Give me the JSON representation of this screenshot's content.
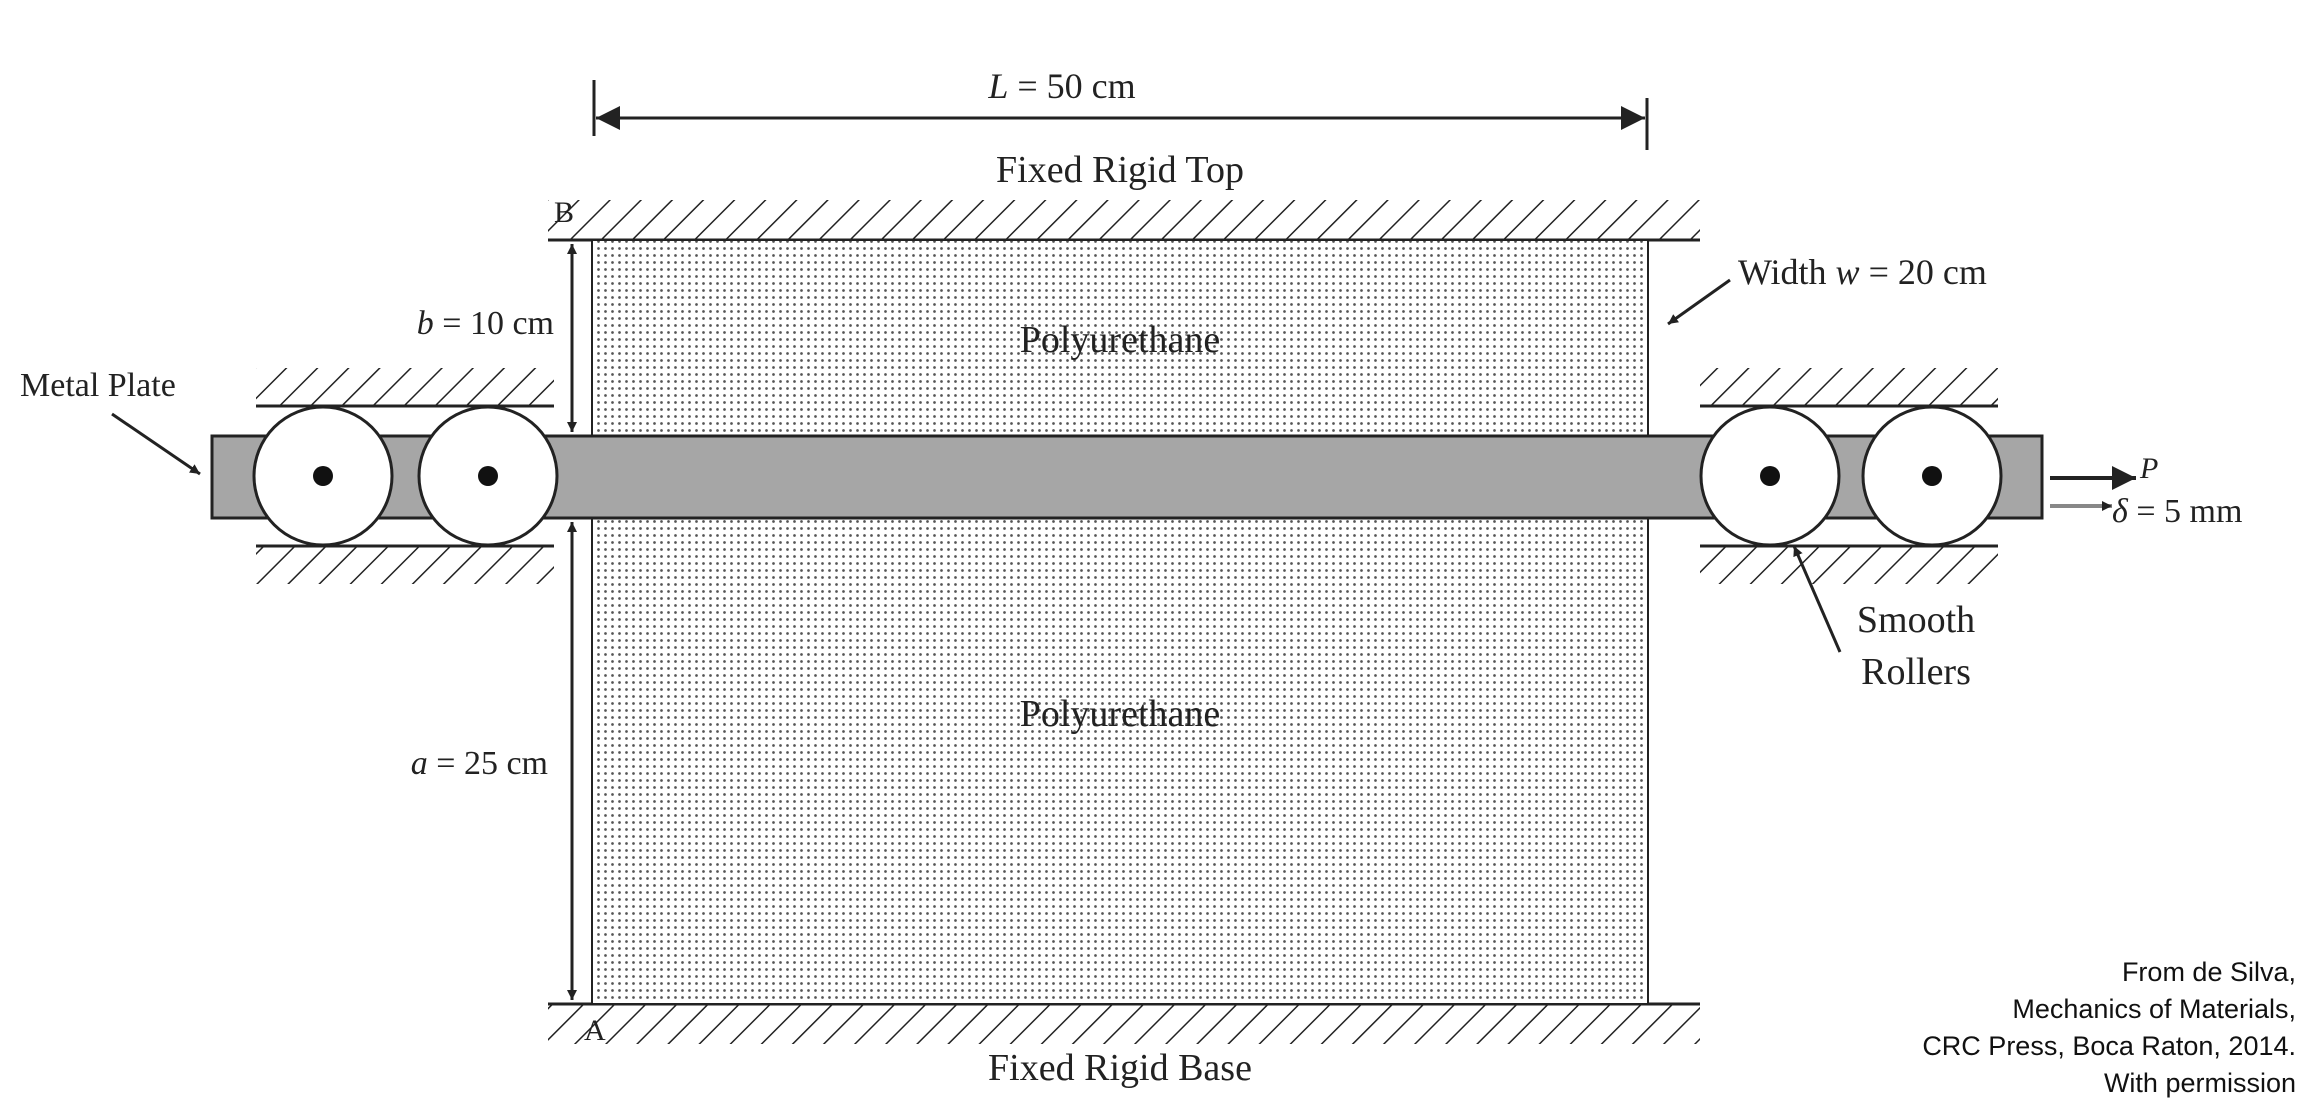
{
  "labels": {
    "top": "Fixed Rigid Top",
    "base": "Fixed Rigid Base",
    "polyurethane_upper": "Polyurethane",
    "polyurethane_lower": "Polyurethane",
    "metal_plate": "Metal Plate",
    "rollers_line1": "Smooth",
    "rollers_line2": "Rollers",
    "point_b": "B",
    "point_a": "A"
  },
  "dimensions": {
    "length": {
      "symbol": "L",
      "value": "50 cm"
    },
    "upper_thickness": {
      "symbol": "b",
      "value": "10 cm"
    },
    "lower_thickness": {
      "symbol": "a",
      "value": "25 cm"
    },
    "width": {
      "prefix": "Width",
      "symbol": "w",
      "value": "20 cm"
    }
  },
  "load": {
    "force_symbol": "P",
    "displacement_symbol": "δ",
    "displacement_value": "5 mm"
  },
  "credit": [
    "From de Silva,",
    "Mechanics of Materials,",
    "CRC Press, Boca Raton, 2014.",
    "With permission"
  ],
  "colors": {
    "plate_fill": "#a6a6a6",
    "line": "#222222",
    "dots": "#555555"
  }
}
